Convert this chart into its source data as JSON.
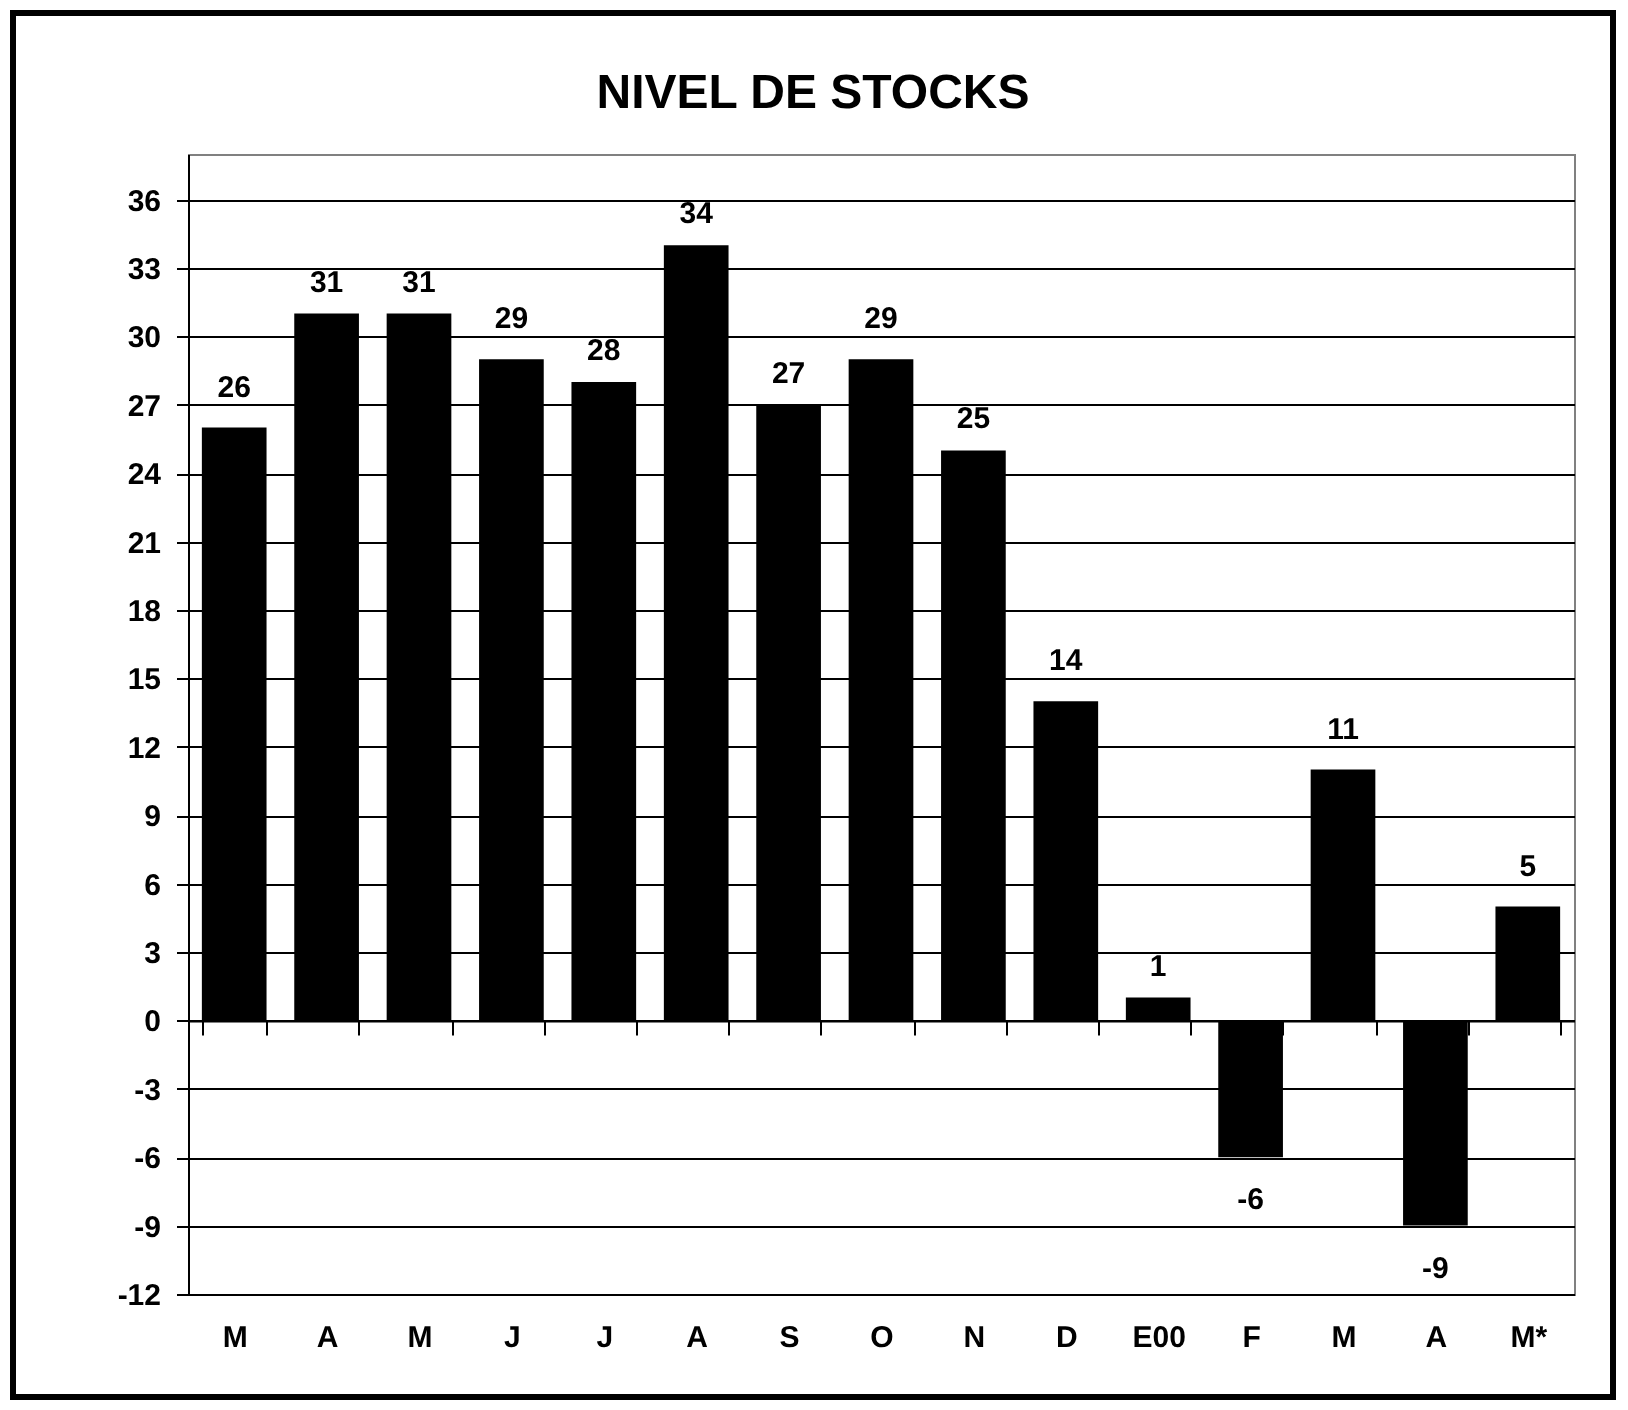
{
  "chart_data": {
    "type": "bar",
    "title": "NIVEL DE STOCKS",
    "categories": [
      "M",
      "A",
      "M",
      "J",
      "J",
      "A",
      "S",
      "O",
      "N",
      "D",
      "E00",
      "F",
      "M",
      "A",
      "M*"
    ],
    "values": [
      26,
      31,
      31,
      29,
      28,
      34,
      27,
      29,
      25,
      14,
      1,
      -6,
      11,
      -9,
      5
    ],
    "color": "#000000",
    "ylim": [
      -12,
      38
    ],
    "yticks": [
      -12,
      -9,
      -6,
      -3,
      0,
      3,
      6,
      9,
      12,
      15,
      18,
      21,
      24,
      27,
      30,
      33,
      36
    ],
    "grid": "y",
    "data_labels": true
  }
}
